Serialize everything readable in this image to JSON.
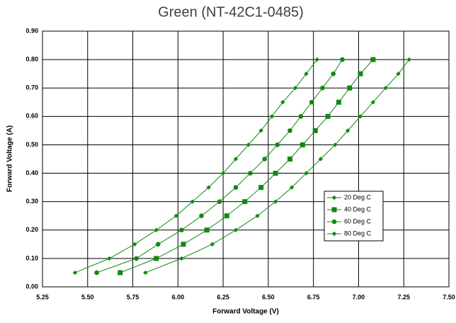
{
  "chart_data": {
    "type": "scatter",
    "title": "Green (NT-42C1-0485)",
    "xlabel": "Forward Voltage (V)",
    "ylabel": "Forward Voltage (A)",
    "xlim": [
      5.25,
      7.5
    ],
    "xticks": [
      5.25,
      {
        "value": 5.5,
        "label": "5.50"
      },
      5.75,
      {
        "value": 6,
        "label": "6.00"
      },
      6.25,
      {
        "value": 6.5,
        "label": "6.50"
      },
      6.75,
      {
        "value": 7,
        "label": "7.00"
      },
      7.25,
      {
        "value": 7.5,
        "label": "7.50"
      }
    ],
    "ylim": [
      0,
      0.9
    ],
    "yticks": [
      {
        "value": 0,
        "label": "0.00"
      },
      {
        "value": 0.1,
        "label": "0.10"
      },
      {
        "value": 0.2,
        "label": "0.20"
      },
      {
        "value": 0.3,
        "label": "0.30"
      },
      {
        "value": 0.4,
        "label": "0.40"
      },
      {
        "value": 0.5,
        "label": "0.50"
      },
      {
        "value": 0.6,
        "label": "0.60"
      },
      {
        "value": 0.7,
        "label": "0.70"
      },
      {
        "value": 0.8,
        "label": "0.80"
      },
      {
        "value": 0.9,
        "label": "0.90"
      }
    ],
    "grid": true,
    "legend": "right",
    "series": [
      {
        "name": "20 Deg C",
        "color": "#108a10",
        "marker": "diamond",
        "x": [
          5.82,
          6.02,
          6.19,
          6.32,
          6.44,
          6.54,
          6.63,
          6.71,
          6.79,
          6.87,
          6.94,
          7.01,
          7.08,
          7.15,
          7.22,
          7.28
        ],
        "values": [
          0.05,
          0.1,
          0.15,
          0.2,
          0.25,
          0.3,
          0.35,
          0.4,
          0.45,
          0.5,
          0.55,
          0.6,
          0.65,
          0.7,
          0.75,
          0.8
        ]
      },
      {
        "name": "40 Deg C",
        "color": "#108a10",
        "marker": "square",
        "x": [
          5.68,
          5.88,
          6.03,
          6.16,
          6.27,
          6.37,
          6.46,
          6.54,
          6.62,
          6.69,
          6.76,
          6.83,
          6.89,
          6.95,
          7.01,
          7.08
        ],
        "values": [
          0.05,
          0.1,
          0.15,
          0.2,
          0.25,
          0.3,
          0.35,
          0.4,
          0.45,
          0.5,
          0.55,
          0.6,
          0.65,
          0.7,
          0.75,
          0.8
        ]
      },
      {
        "name": "60 Deg C",
        "color": "#108a10",
        "marker": "circle",
        "x": [
          5.55,
          5.77,
          5.89,
          6.02,
          6.13,
          6.23,
          6.32,
          6.4,
          6.48,
          6.55,
          6.62,
          6.68,
          6.74,
          6.8,
          6.86,
          6.91
        ],
        "values": [
          0.05,
          0.1,
          0.15,
          0.2,
          0.25,
          0.3,
          0.35,
          0.4,
          0.45,
          0.5,
          0.55,
          0.6,
          0.65,
          0.7,
          0.75,
          0.8
        ]
      },
      {
        "name": "80 Deg C",
        "color": "#108a10",
        "marker": "diamond",
        "x": [
          5.43,
          5.62,
          5.76,
          5.88,
          5.99,
          6.08,
          6.17,
          6.25,
          6.32,
          6.39,
          6.46,
          6.52,
          6.58,
          6.65,
          6.71,
          6.77
        ],
        "values": [
          0.05,
          0.1,
          0.15,
          0.2,
          0.25,
          0.3,
          0.35,
          0.4,
          0.45,
          0.5,
          0.55,
          0.6,
          0.65,
          0.7,
          0.75,
          0.8
        ]
      }
    ]
  }
}
